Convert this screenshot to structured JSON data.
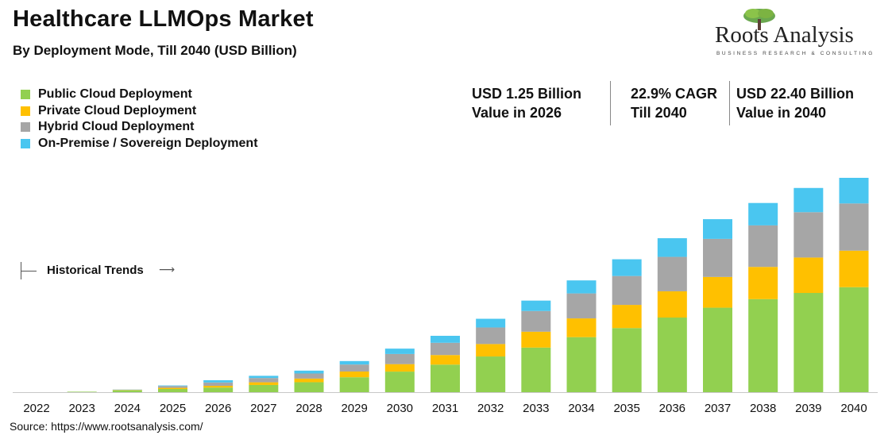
{
  "header": {
    "title": "Healthcare LLMOps Market",
    "subtitle": "By Deployment Mode, Till 2040 (USD Billion)"
  },
  "logo": {
    "name": "Roots Analysis",
    "tagline": "BUSINESS RESEARCH & CONSULTING",
    "icon": "tree-icon"
  },
  "stats": [
    {
      "line1": "USD 1.25 Billion",
      "line2": "Value in 2026"
    },
    {
      "line1": "22.9% CAGR",
      "line2": "Till 2040"
    },
    {
      "line1": "USD 22.40 Billion",
      "line2": "Value in 2040"
    }
  ],
  "annotation": {
    "label": "Historical Trends",
    "icon": "right-arrow-icon"
  },
  "source": "Source: https://www.rootsanalysis.com/",
  "colors": {
    "Public Cloud Deployment": "#92d050",
    "Private Cloud Deployment": "#ffc000",
    "Hybrid Cloud Deployment": "#a6a6a6",
    "On-Premise / Sovereign Deployment": "#4ac6f0"
  },
  "chart_data": {
    "type": "bar",
    "stacked": true,
    "title": "Healthcare LLMOps Market",
    "subtitle": "By Deployment Mode, Till 2040 (USD Billion)",
    "xlabel": "",
    "ylabel": "",
    "y_axis_visible": false,
    "grid": false,
    "legend_position": "top-left",
    "ylim": [
      0,
      22.4
    ],
    "categories": [
      "2022",
      "2023",
      "2024",
      "2025",
      "2026",
      "2027",
      "2028",
      "2029",
      "2030",
      "2031",
      "2032",
      "2033",
      "2034",
      "2035",
      "2036",
      "2037",
      "2038",
      "2039",
      "2040"
    ],
    "series": [
      {
        "name": "Public Cloud Deployment",
        "values": [
          0.0,
          0.05,
          0.2,
          0.33,
          0.48,
          0.75,
          1.04,
          1.56,
          2.15,
          2.88,
          3.73,
          4.66,
          5.75,
          6.7,
          7.8,
          8.83,
          9.72,
          10.37,
          10.97
        ]
      },
      {
        "name": "Private Cloud Deployment",
        "values": [
          0.0,
          0.0,
          0.03,
          0.12,
          0.18,
          0.28,
          0.38,
          0.6,
          0.78,
          1.0,
          1.3,
          1.66,
          1.96,
          2.42,
          2.74,
          3.21,
          3.37,
          3.7,
          3.82
        ]
      },
      {
        "name": "Hybrid Cloud Deployment",
        "values": [
          0.0,
          0.0,
          0.04,
          0.19,
          0.35,
          0.45,
          0.53,
          0.73,
          1.06,
          1.28,
          1.73,
          2.16,
          2.61,
          3.02,
          3.6,
          3.98,
          4.34,
          4.74,
          4.93
        ]
      },
      {
        "name": "On-Premise / Sovereign Deployment",
        "values": [
          0.0,
          0.0,
          0.01,
          0.06,
          0.24,
          0.23,
          0.3,
          0.36,
          0.56,
          0.73,
          0.91,
          1.09,
          1.36,
          1.75,
          1.95,
          2.06,
          2.34,
          2.53,
          2.68
        ]
      }
    ]
  }
}
